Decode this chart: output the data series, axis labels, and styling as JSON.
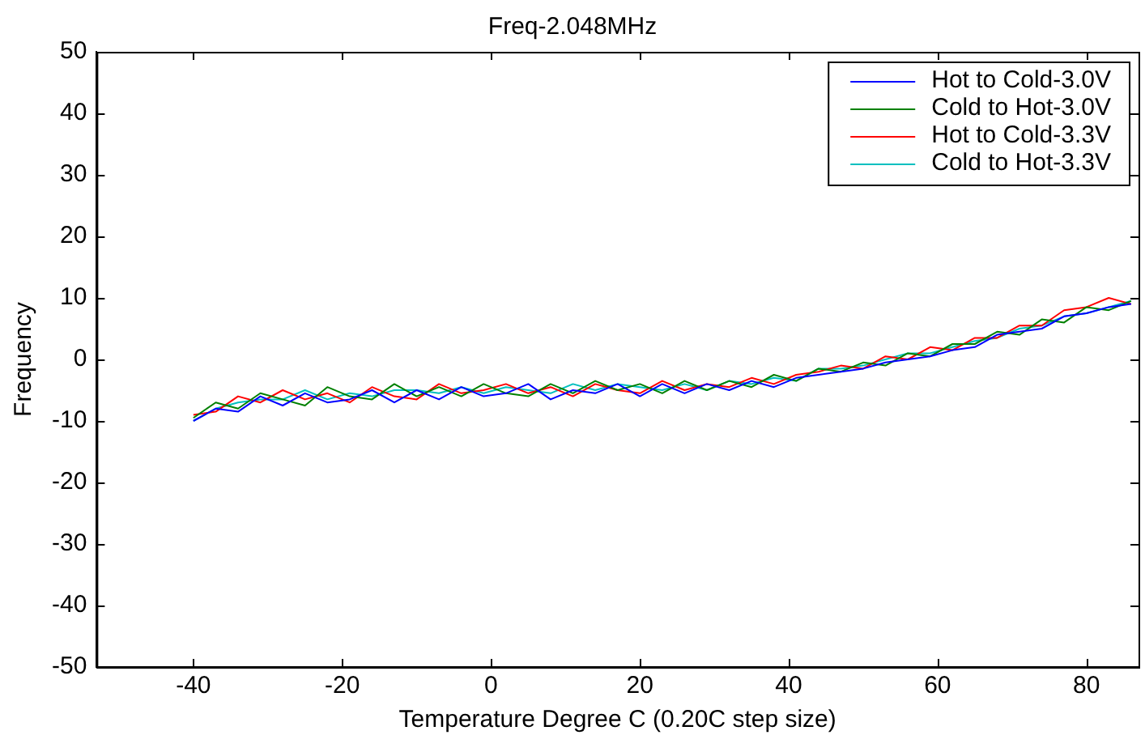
{
  "chart_data": {
    "type": "line",
    "title": "Freq-2.048MHz",
    "xlabel": "Temperature Degree C (0.20C step size)",
    "ylabel": "Frequency",
    "x": [
      -40,
      -37,
      -34,
      -31,
      -28,
      -25,
      -22,
      -19,
      -16,
      -13,
      -10,
      -7,
      -4,
      -1,
      2,
      5,
      8,
      11,
      14,
      17,
      20,
      23,
      26,
      29,
      32,
      35,
      38,
      41,
      44,
      47,
      50,
      53,
      56,
      59,
      62,
      65,
      68,
      71,
      74,
      77,
      80,
      83,
      86
    ],
    "series": [
      {
        "name": "Hot to Cold-3.0V",
        "color": "#0000ff",
        "values": [
          -10,
          -8,
          -8.5,
          -6,
          -7.5,
          -5.5,
          -7,
          -6.5,
          -5,
          -7,
          -5,
          -6.5,
          -4.5,
          -6,
          -5.5,
          -4,
          -6.5,
          -5,
          -5.5,
          -4,
          -6,
          -4,
          -5.5,
          -4,
          -5,
          -3.5,
          -4.5,
          -3,
          -2.5,
          -2,
          -1.5,
          -0.5,
          0,
          0.5,
          1.5,
          2,
          4,
          4.5,
          5,
          7,
          7.5,
          8.5,
          9
        ]
      },
      {
        "name": "Cold to Hot-3.0V",
        "color": "#008000",
        "values": [
          -9.5,
          -7,
          -8,
          -5.5,
          -6.5,
          -7.5,
          -4.5,
          -6,
          -6.5,
          -4,
          -6,
          -4.5,
          -6,
          -4,
          -5.5,
          -6,
          -4,
          -5.5,
          -3.5,
          -5,
          -4,
          -5.5,
          -3.5,
          -5,
          -3.5,
          -4.5,
          -2.5,
          -3.5,
          -1.5,
          -2,
          -0.5,
          -1,
          1,
          0.5,
          2.5,
          2.5,
          4.5,
          4,
          6.5,
          6,
          8.5,
          8,
          9.5
        ]
      },
      {
        "name": "Hot to Cold-3.3V",
        "color": "#ff0000",
        "values": [
          -9,
          -8.5,
          -6,
          -7,
          -5,
          -6.5,
          -5.5,
          -7,
          -4.5,
          -6,
          -6.5,
          -4,
          -5.5,
          -5,
          -4,
          -5.5,
          -4.5,
          -6,
          -4,
          -5,
          -5.5,
          -3.5,
          -5,
          -4,
          -4.5,
          -3,
          -4,
          -2.5,
          -2,
          -1,
          -1.5,
          0.5,
          0,
          2,
          1.5,
          3.5,
          3.5,
          5.5,
          5.5,
          8,
          8.5,
          10,
          9
        ]
      },
      {
        "name": "Cold to Hot-3.3V",
        "color": "#00bfbf",
        "values": [
          -10,
          -8,
          -7,
          -6.5,
          -6.5,
          -5,
          -6.5,
          -5.5,
          -6,
          -5,
          -5,
          -5.5,
          -4.5,
          -5.5,
          -4.5,
          -5,
          -5.5,
          -4,
          -5,
          -4,
          -4.5,
          -5,
          -4,
          -5,
          -3.5,
          -4,
          -3,
          -3.5,
          -1.5,
          -1.5,
          -1,
          0,
          1,
          1,
          2,
          3,
          3.5,
          5,
          5.5,
          7,
          7.5,
          8.5,
          9.5
        ]
      }
    ],
    "xlim": [
      -53,
      87
    ],
    "xticks": [
      -40,
      -20,
      0,
      20,
      40,
      60,
      80
    ],
    "ylim": [
      -50,
      50
    ],
    "yticks": [
      -50,
      -40,
      -30,
      -20,
      -10,
      0,
      10,
      20,
      30,
      40,
      50
    ],
    "grid": false,
    "legend": "top right",
    "marker": "none",
    "line_style": "solid"
  }
}
